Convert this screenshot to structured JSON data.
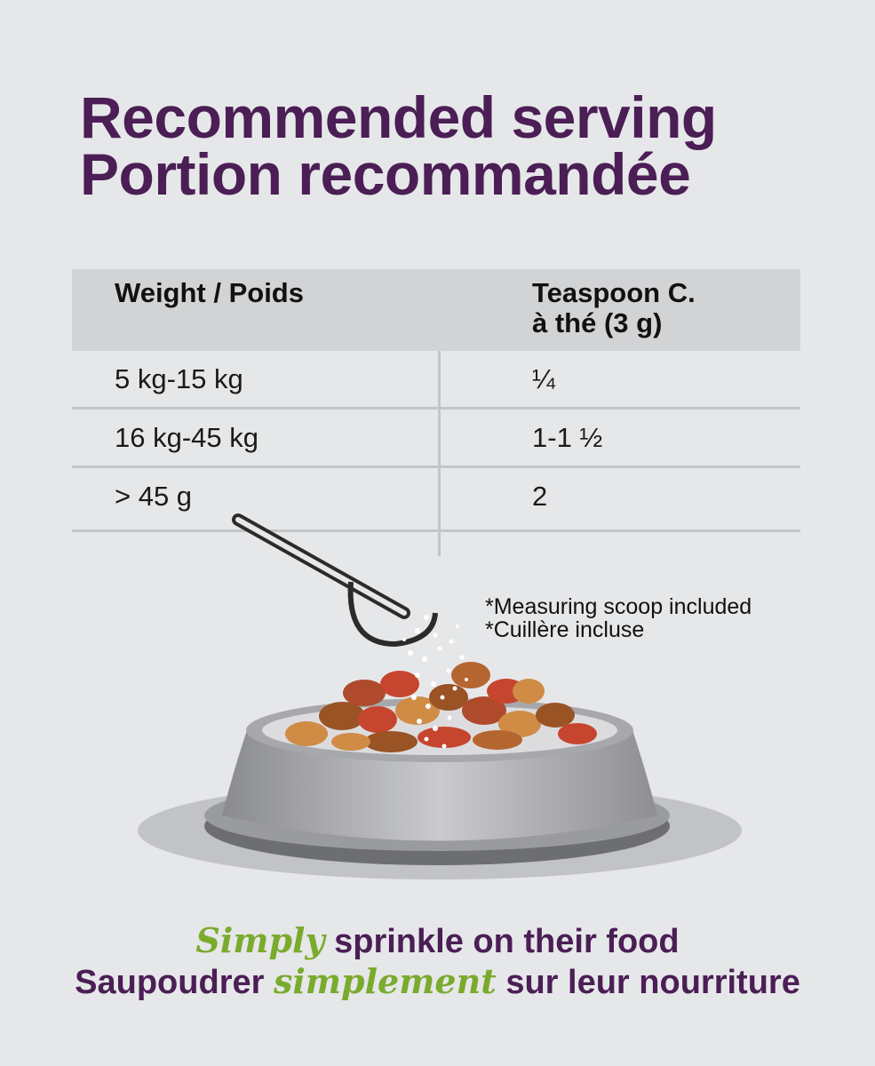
{
  "title": {
    "line1": "Recommended serving",
    "line2": "Portion recommandée"
  },
  "table": {
    "headers": [
      "Weight / Poids",
      "Teaspoon C.",
      "à thé (3 g)"
    ],
    "rows": [
      {
        "weight": "5 kg-15 kg",
        "teaspoon": "¼"
      },
      {
        "weight": "16 kg-45 kg",
        "teaspoon": "1-1 ½"
      },
      {
        "weight": "> 45 g",
        "teaspoon": "2"
      }
    ]
  },
  "note": {
    "line1": "*Measuring scoop included",
    "line2": "*Cuillère incluse"
  },
  "tagline": {
    "line1_accent": "Simply",
    "line1_rest": " sprinkle on their food",
    "line2_start": "Saupoudrer ",
    "line2_accent": "simplement",
    "line2_end": " sur leur nourriture"
  },
  "colors": {
    "background": "#e6e7e9",
    "title": "#4b1e55",
    "accent": "#7aab2d",
    "header_bg": "#d2d3d5"
  }
}
